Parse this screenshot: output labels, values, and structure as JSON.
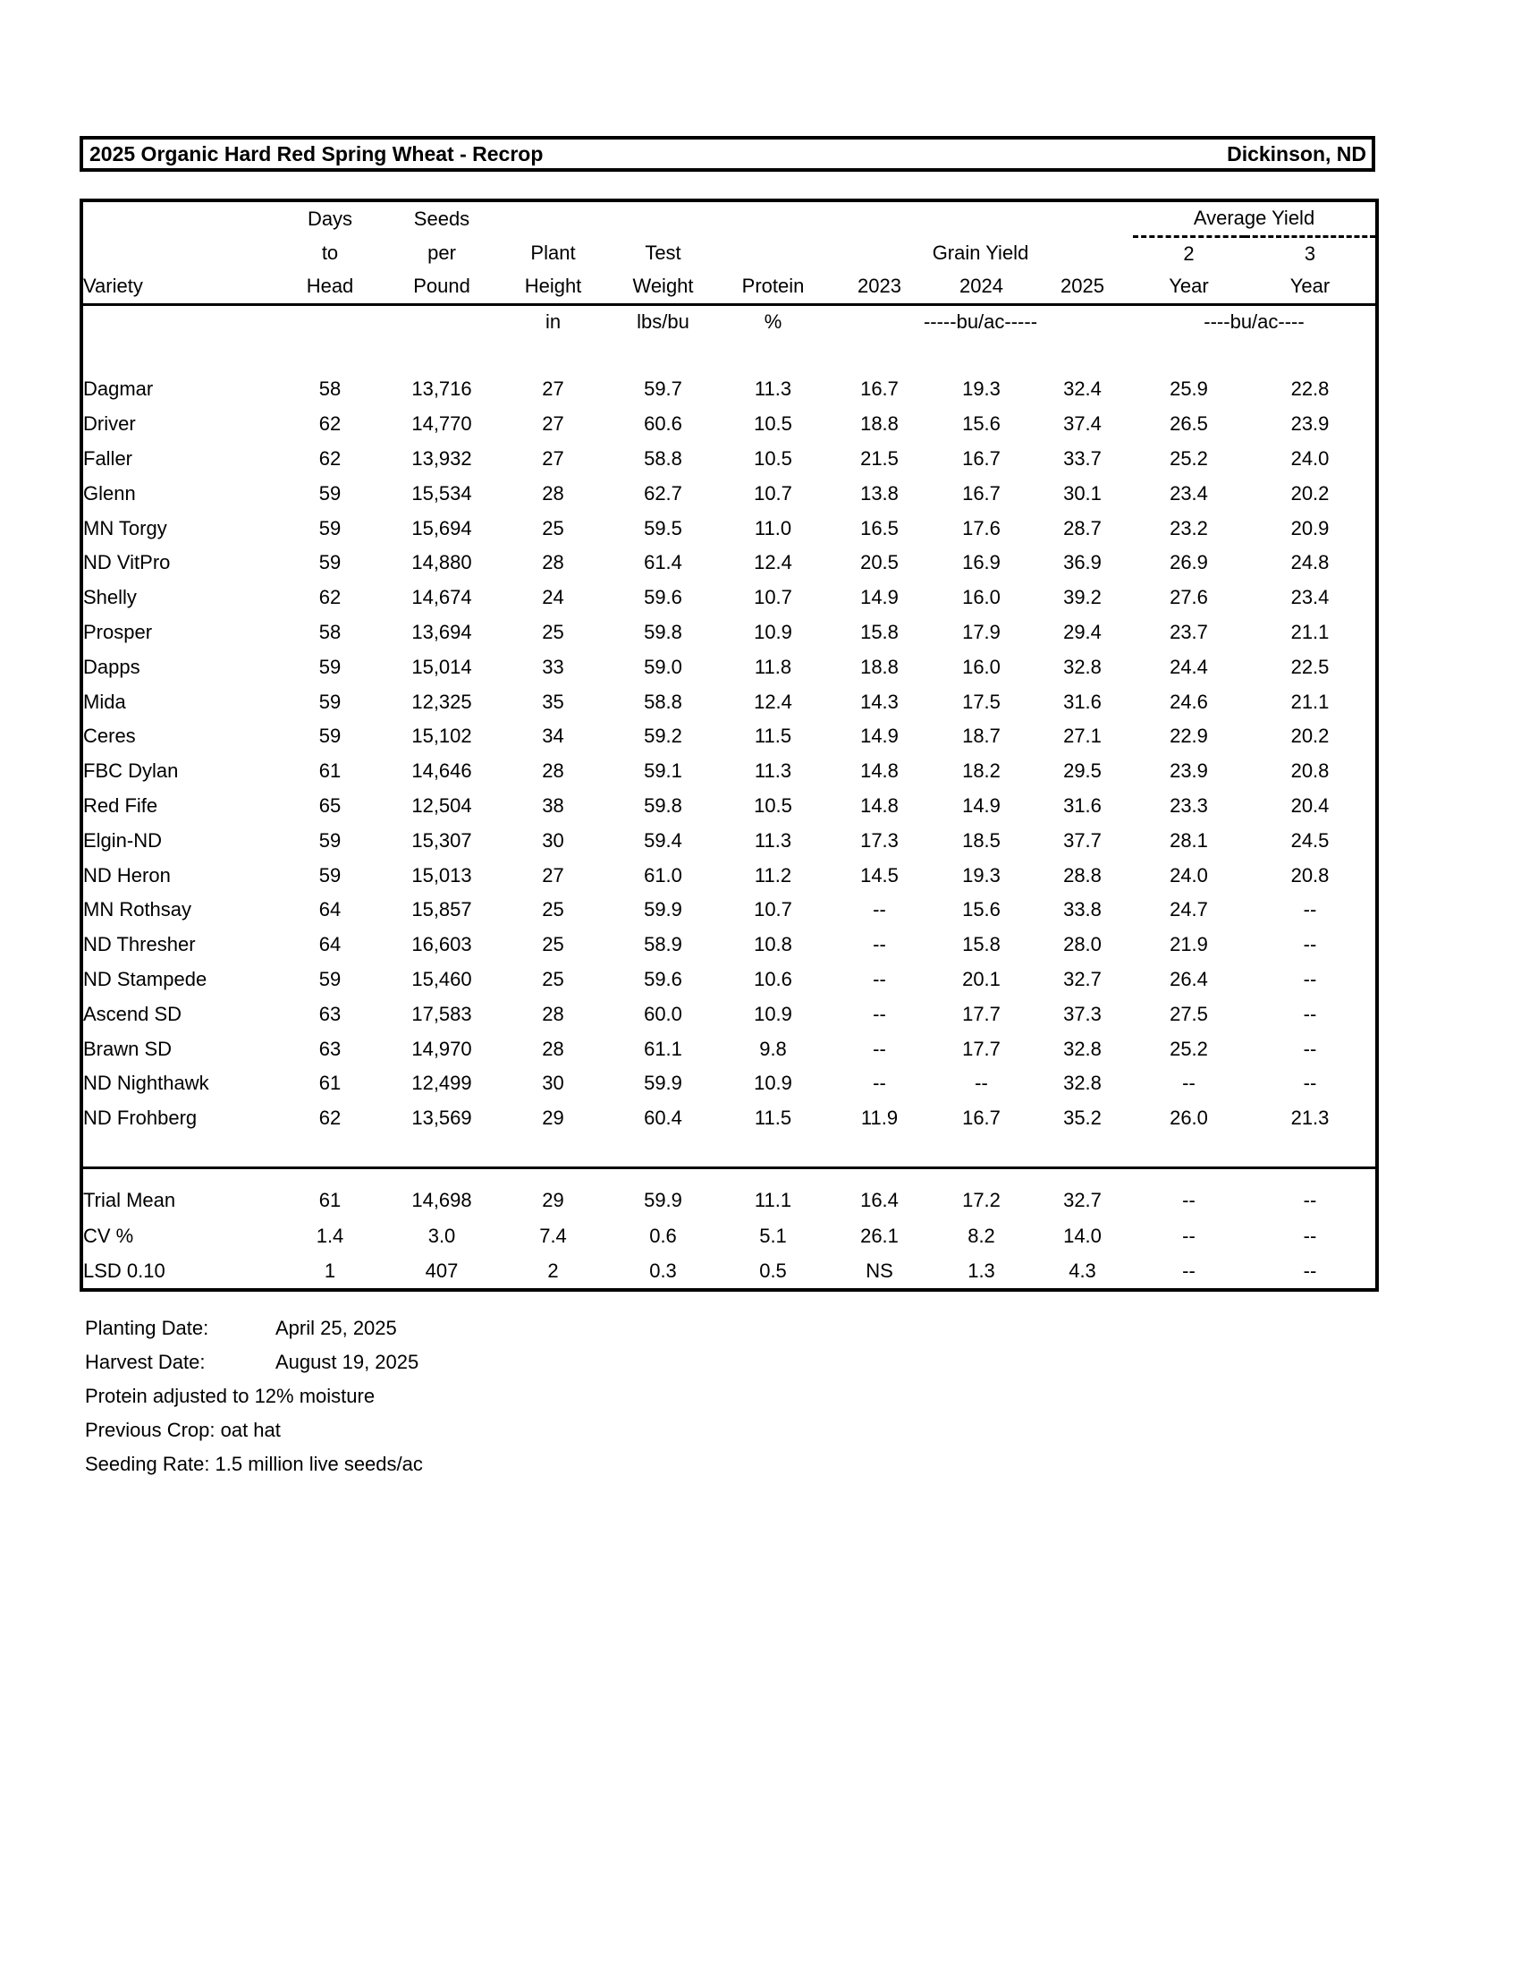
{
  "title": {
    "left": "2025 Organic Hard Red Spring Wheat - Recrop",
    "right": "Dickinson, ND"
  },
  "table": {
    "header": {
      "variety": "Variety",
      "days_l1": "Days",
      "days_l2": "to",
      "days_l3": "Head",
      "seeds_l1": "Seeds",
      "seeds_l2": "per",
      "seeds_l3": "Pound",
      "plant_l1": "Plant",
      "plant_l2": "Height",
      "test_l1": "Test",
      "test_l2": "Weight",
      "protein": "Protein",
      "grain_yield": "Grain Yield",
      "year_2023": "2023",
      "year_2024": "2024",
      "year_2025": "2025",
      "average_yield": "Average Yield",
      "avg2_l1": "2",
      "avg2_l2": "Year",
      "avg3_l1": "3",
      "avg3_l2": "Year"
    },
    "units": {
      "height": "in",
      "weight": "lbs/bu",
      "protein": "%",
      "grain": "-----bu/ac-----",
      "avg": "----bu/ac----"
    },
    "rows": [
      [
        "Dagmar",
        "58",
        "13,716",
        "27",
        "59.7",
        "11.3",
        "16.7",
        "19.3",
        "32.4",
        "25.9",
        "22.8"
      ],
      [
        "Driver",
        "62",
        "14,770",
        "27",
        "60.6",
        "10.5",
        "18.8",
        "15.6",
        "37.4",
        "26.5",
        "23.9"
      ],
      [
        "Faller",
        "62",
        "13,932",
        "27",
        "58.8",
        "10.5",
        "21.5",
        "16.7",
        "33.7",
        "25.2",
        "24.0"
      ],
      [
        "Glenn",
        "59",
        "15,534",
        "28",
        "62.7",
        "10.7",
        "13.8",
        "16.7",
        "30.1",
        "23.4",
        "20.2"
      ],
      [
        "MN Torgy",
        "59",
        "15,694",
        "25",
        "59.5",
        "11.0",
        "16.5",
        "17.6",
        "28.7",
        "23.2",
        "20.9"
      ],
      [
        "ND VitPro",
        "59",
        "14,880",
        "28",
        "61.4",
        "12.4",
        "20.5",
        "16.9",
        "36.9",
        "26.9",
        "24.8"
      ],
      [
        "Shelly",
        "62",
        "14,674",
        "24",
        "59.6",
        "10.7",
        "14.9",
        "16.0",
        "39.2",
        "27.6",
        "23.4"
      ],
      [
        "Prosper",
        "58",
        "13,694",
        "25",
        "59.8",
        "10.9",
        "15.8",
        "17.9",
        "29.4",
        "23.7",
        "21.1"
      ],
      [
        "Dapps",
        "59",
        "15,014",
        "33",
        "59.0",
        "11.8",
        "18.8",
        "16.0",
        "32.8",
        "24.4",
        "22.5"
      ],
      [
        "Mida",
        "59",
        "12,325",
        "35",
        "58.8",
        "12.4",
        "14.3",
        "17.5",
        "31.6",
        "24.6",
        "21.1"
      ],
      [
        "Ceres",
        "59",
        "15,102",
        "34",
        "59.2",
        "11.5",
        "14.9",
        "18.7",
        "27.1",
        "22.9",
        "20.2"
      ],
      [
        "FBC Dylan",
        "61",
        "14,646",
        "28",
        "59.1",
        "11.3",
        "14.8",
        "18.2",
        "29.5",
        "23.9",
        "20.8"
      ],
      [
        "Red Fife",
        "65",
        "12,504",
        "38",
        "59.8",
        "10.5",
        "14.8",
        "14.9",
        "31.6",
        "23.3",
        "20.4"
      ],
      [
        "Elgin-ND",
        "59",
        "15,307",
        "30",
        "59.4",
        "11.3",
        "17.3",
        "18.5",
        "37.7",
        "28.1",
        "24.5"
      ],
      [
        "ND Heron",
        "59",
        "15,013",
        "27",
        "61.0",
        "11.2",
        "14.5",
        "19.3",
        "28.8",
        "24.0",
        "20.8"
      ],
      [
        "MN Rothsay",
        "64",
        "15,857",
        "25",
        "59.9",
        "10.7",
        "--",
        "15.6",
        "33.8",
        "24.7",
        "--"
      ],
      [
        "ND Thresher",
        "64",
        "16,603",
        "25",
        "58.9",
        "10.8",
        "--",
        "15.8",
        "28.0",
        "21.9",
        "--"
      ],
      [
        "ND Stampede",
        "59",
        "15,460",
        "25",
        "59.6",
        "10.6",
        "--",
        "20.1",
        "32.7",
        "26.4",
        "--"
      ],
      [
        "Ascend SD",
        "63",
        "17,583",
        "28",
        "60.0",
        "10.9",
        "--",
        "17.7",
        "37.3",
        "27.5",
        "--"
      ],
      [
        "Brawn SD",
        "63",
        "14,970",
        "28",
        "61.1",
        "9.8",
        "--",
        "17.7",
        "32.8",
        "25.2",
        "--"
      ],
      [
        "ND Nighthawk",
        "61",
        "12,499",
        "30",
        "59.9",
        "10.9",
        "--",
        "--",
        "32.8",
        "--",
        "--"
      ],
      [
        "ND Frohberg",
        "62",
        "13,569",
        "29",
        "60.4",
        "11.5",
        "11.9",
        "16.7",
        "35.2",
        "26.0",
        "21.3"
      ]
    ],
    "summary_rows": [
      [
        "Trial Mean",
        "61",
        "14,698",
        "29",
        "59.9",
        "11.1",
        "16.4",
        "17.2",
        "32.7",
        "--",
        "--"
      ],
      [
        "CV %",
        "1.4",
        "3.0",
        "7.4",
        "0.6",
        "5.1",
        "26.1",
        "8.2",
        "14.0",
        "--",
        "--"
      ],
      [
        "LSD 0.10",
        "1",
        "407",
        "2",
        "0.3",
        "0.5",
        "NS",
        "1.3",
        "4.3",
        "--",
        "--"
      ]
    ]
  },
  "footer": {
    "lines": [
      {
        "label": "Planting Date:",
        "value": "April 25, 2025"
      },
      {
        "label": "Harvest Date:",
        "value": "August 19, 2025"
      },
      {
        "text": "Protein adjusted to 12% moisture"
      },
      {
        "text": "Previous Crop:  oat hat"
      },
      {
        "text": "Seeding Rate:  1.5 million live seeds/ac"
      }
    ]
  }
}
